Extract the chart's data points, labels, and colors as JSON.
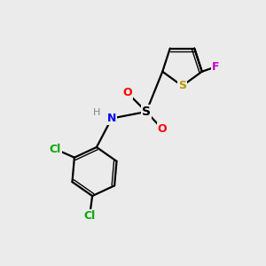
{
  "background_color": "#ebebeb",
  "bond_color": "#000000",
  "atom_colors": {
    "S_thiophene": "#b8960c",
    "S_sulfonyl": "#000000",
    "O": "#ff0000",
    "N": "#0000ee",
    "F": "#cc00cc",
    "Cl": "#00aa00",
    "H": "#888888",
    "C": "#000000"
  },
  "figsize": [
    3.0,
    3.0
  ],
  "dpi": 100,
  "xlim": [
    0,
    10
  ],
  "ylim": [
    0,
    10
  ]
}
